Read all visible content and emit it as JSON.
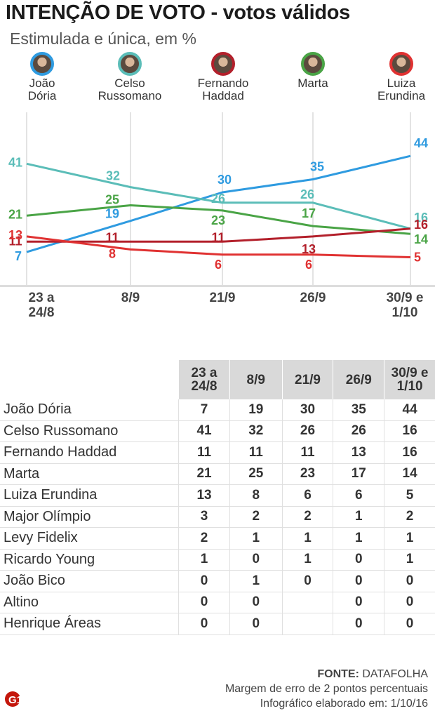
{
  "header": {
    "title": "INTENÇÃO DE VOTO",
    "title_sep": " - ",
    "title_sub": "votos válidos",
    "subtitle": "Estimulada e única, em %"
  },
  "candidates_header": [
    {
      "name": "João\nDória",
      "ring": "#2f9be0"
    },
    {
      "name": "Celso\nRussomano",
      "ring": "#5bbdb8"
    },
    {
      "name": "Fernando\nHaddad",
      "ring": "#b3202b"
    },
    {
      "name": "Marta",
      "ring": "#4aa446"
    },
    {
      "name": "Luiza\nErundina",
      "ring": "#e03232"
    }
  ],
  "chart_data": {
    "type": "line",
    "title": "INTENÇÃO DE VOTO - votos válidos",
    "subtitle": "Estimulada e única, em %",
    "categories": [
      "23 a\n24/8",
      "8/9",
      "21/9",
      "26/9",
      "30/9 e\n1/10"
    ],
    "ylim": [
      0,
      50
    ],
    "xlabel": "",
    "ylabel": "",
    "series": [
      {
        "name": "João Dória",
        "color": "#2f9be0",
        "values": [
          7,
          19,
          30,
          35,
          44
        ]
      },
      {
        "name": "Celso Russomano",
        "color": "#5bbdb8",
        "values": [
          41,
          32,
          26,
          26,
          16
        ]
      },
      {
        "name": "Marta",
        "color": "#4aa446",
        "values": [
          21,
          25,
          23,
          17,
          14
        ]
      },
      {
        "name": "Fernando Haddad",
        "color": "#b3202b",
        "values": [
          11,
          11,
          11,
          13,
          16
        ]
      },
      {
        "name": "Luiza Erundina",
        "color": "#e03232",
        "values": [
          13,
          8,
          6,
          6,
          5
        ]
      }
    ]
  },
  "table": {
    "headers": [
      "23 a\n24/8",
      "8/9",
      "21/9",
      "26/9",
      "30/9 e\n1/10"
    ],
    "rows": [
      {
        "name": "João Dória",
        "values": [
          "7",
          "19",
          "30",
          "35",
          "44"
        ]
      },
      {
        "name": "Celso Russomano",
        "values": [
          "41",
          "32",
          "26",
          "26",
          "16"
        ]
      },
      {
        "name": "Fernando Haddad",
        "values": [
          "11",
          "11",
          "11",
          "13",
          "16"
        ]
      },
      {
        "name": "Marta",
        "values": [
          "21",
          "25",
          "23",
          "17",
          "14"
        ]
      },
      {
        "name": "Luiza Erundina",
        "values": [
          "13",
          "8",
          "6",
          "6",
          "5"
        ]
      },
      {
        "name": "Major Olímpio",
        "values": [
          "3",
          "2",
          "2",
          "1",
          "2"
        ]
      },
      {
        "name": "Levy Fidelix",
        "values": [
          "2",
          "1",
          "1",
          "1",
          "1"
        ]
      },
      {
        "name": "Ricardo Young",
        "values": [
          "1",
          "0",
          "1",
          "0",
          "1"
        ]
      },
      {
        "name": "João Bico",
        "values": [
          "0",
          "1",
          "0",
          "0",
          "0"
        ]
      },
      {
        "name": "Altino",
        "values": [
          "0",
          "0",
          "",
          "0",
          "0"
        ]
      },
      {
        "name": "Henrique Áreas",
        "values": [
          "0",
          "0",
          "",
          "0",
          "0"
        ]
      }
    ]
  },
  "footer": {
    "source_label": "FONTE:",
    "source": "DATAFOLHA",
    "margin": "Margem  de erro de 2 pontos percentuais",
    "made": "Infográfico elaborado em: 1/10/16"
  },
  "logo": {
    "text": "G1",
    "color": "#c4170c"
  }
}
